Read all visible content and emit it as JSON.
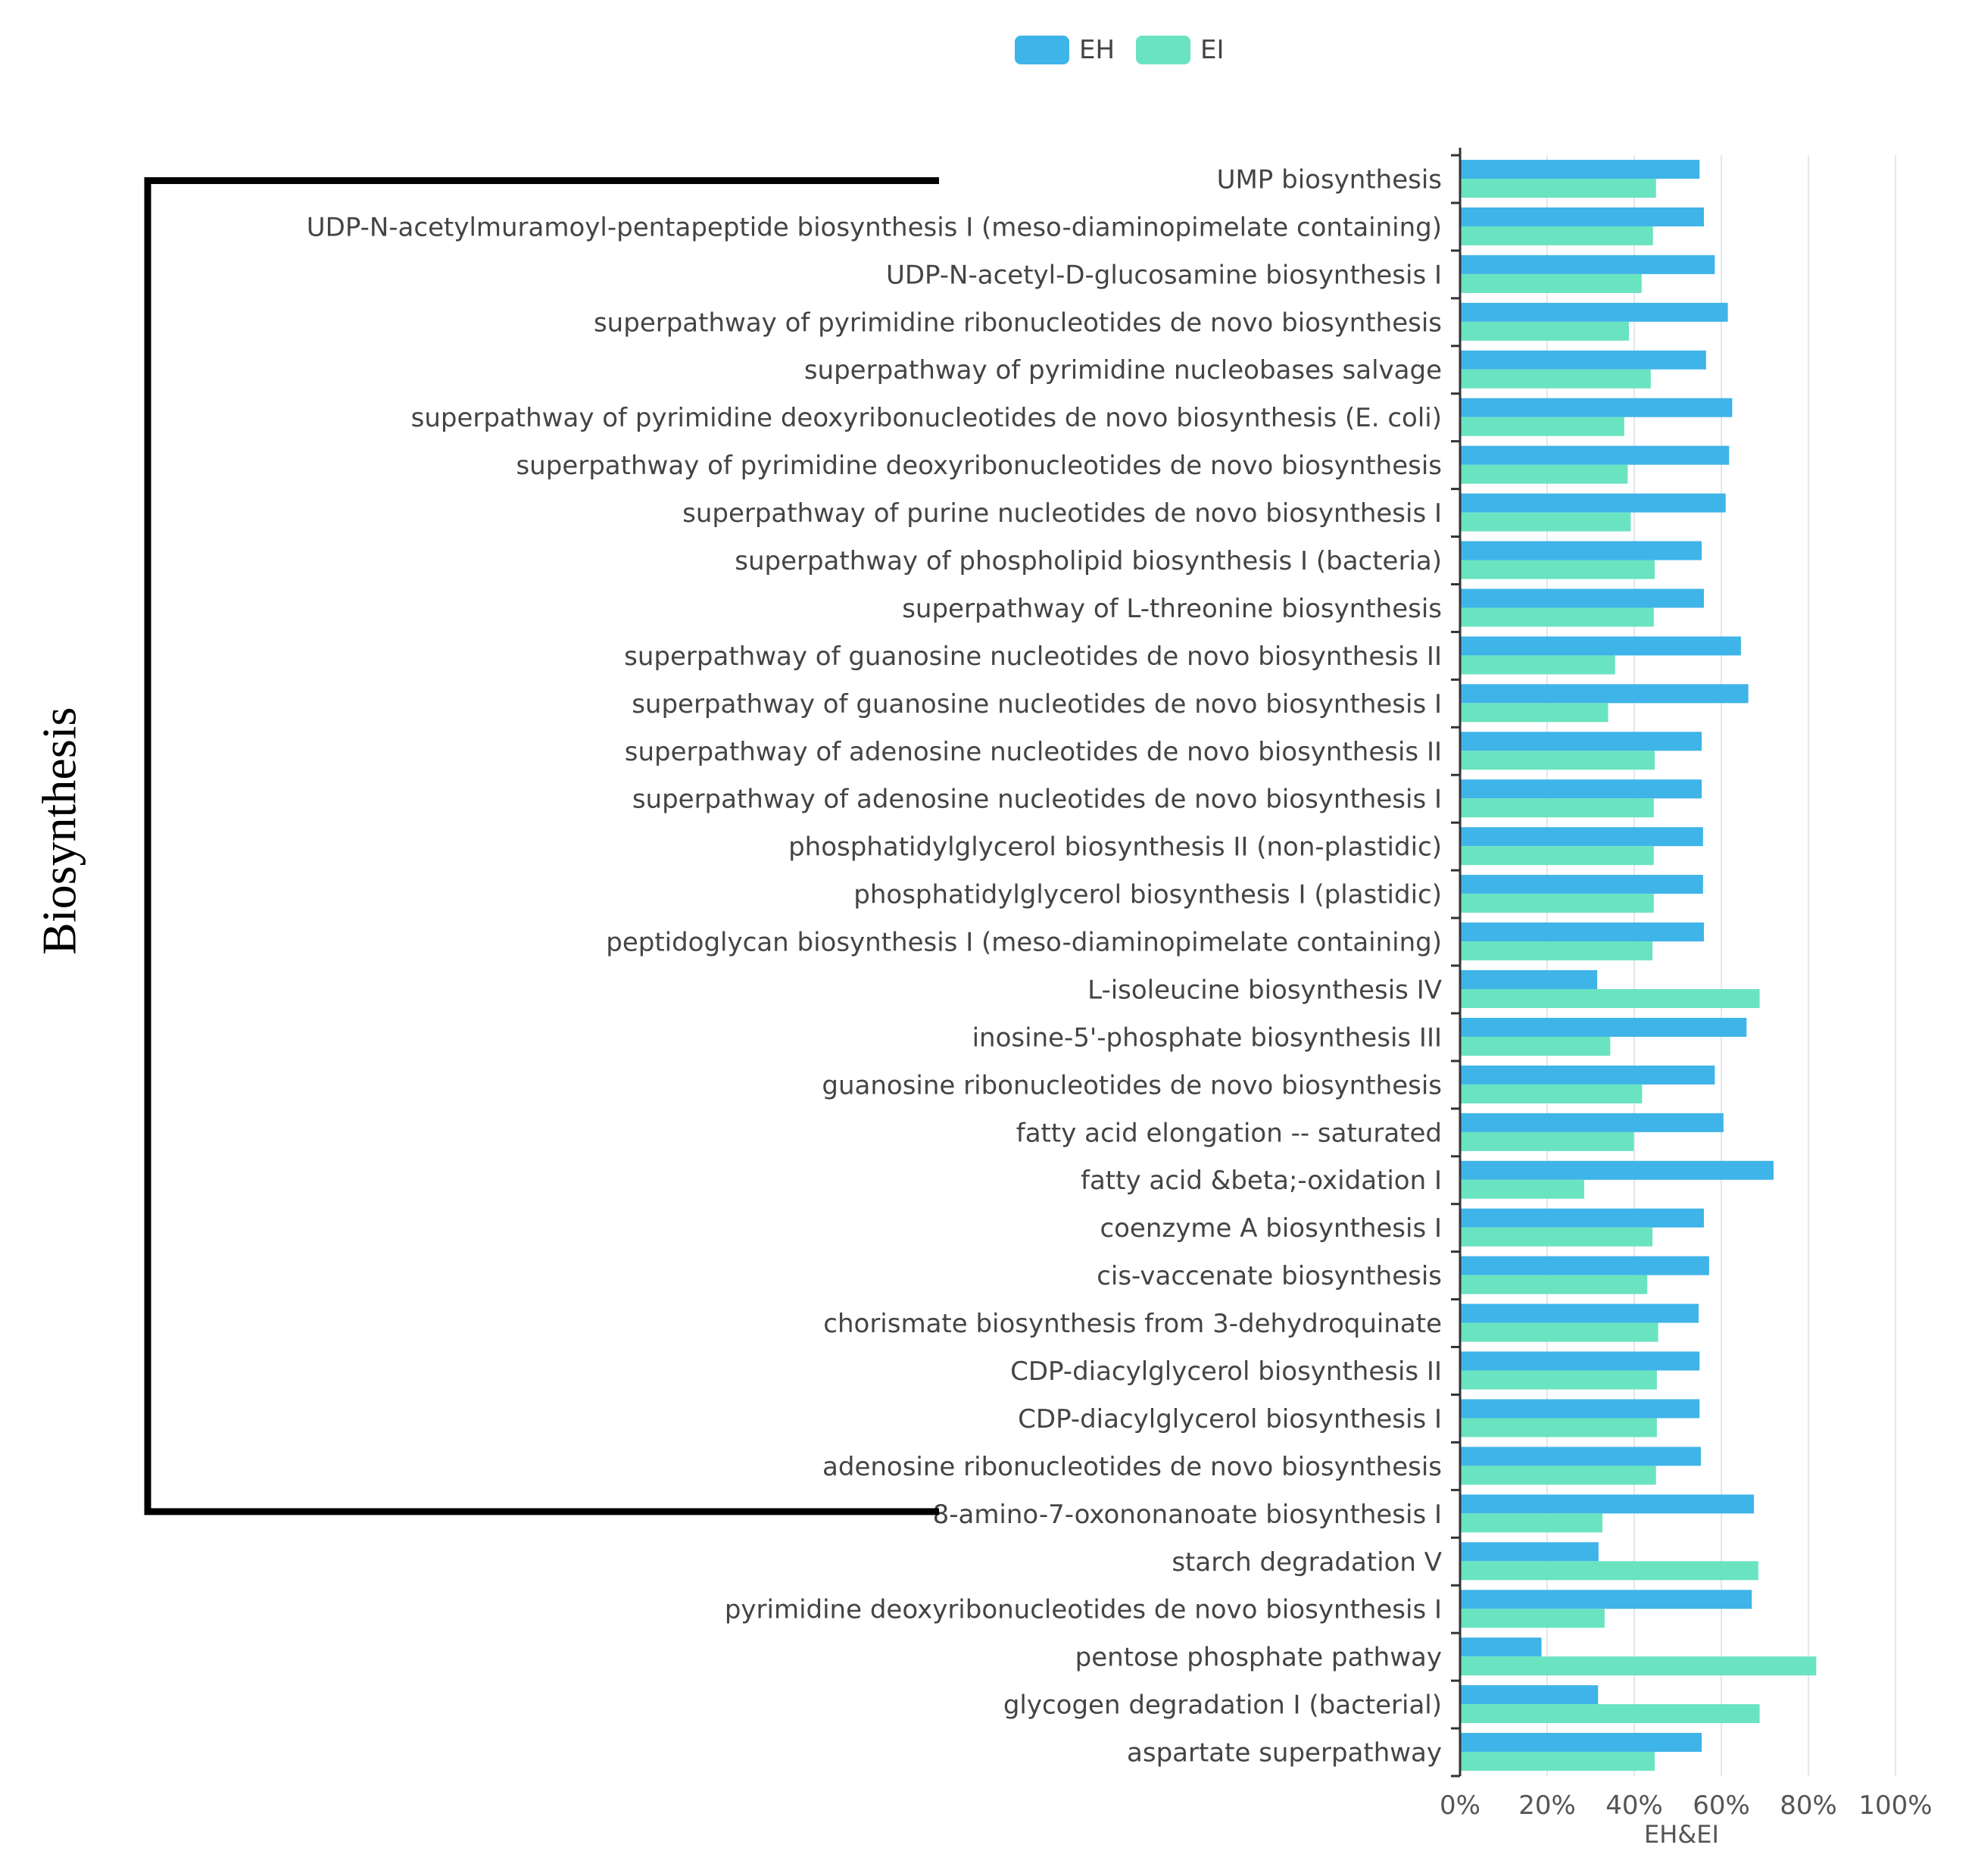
{
  "chart_data": {
    "type": "bar",
    "orientation": "horizontal",
    "categories": [
      "UMP biosynthesis",
      "UDP-N-acetylmuramoyl-pentapeptide biosynthesis I (meso-diaminopimelate containing)",
      "UDP-N-acetyl-D-glucosamine biosynthesis I",
      "superpathway of pyrimidine ribonucleotides de novo biosynthesis",
      "superpathway of pyrimidine nucleobases salvage",
      "superpathway of pyrimidine deoxyribonucleotides de novo biosynthesis (E. coli)",
      "superpathway of pyrimidine deoxyribonucleotides de novo biosynthesis",
      "superpathway of purine nucleotides de novo biosynthesis I",
      "superpathway of phospholipid biosynthesis I (bacteria)",
      "superpathway of L-threonine biosynthesis",
      "superpathway of guanosine nucleotides de novo biosynthesis II",
      "superpathway of guanosine nucleotides de novo biosynthesis I",
      "superpathway of adenosine nucleotides de novo biosynthesis II",
      "superpathway of adenosine nucleotides de novo biosynthesis I",
      "phosphatidylglycerol biosynthesis II (non-plastidic)",
      "phosphatidylglycerol biosynthesis I (plastidic)",
      "peptidoglycan biosynthesis I (meso-diaminopimelate containing)",
      "L-isoleucine biosynthesis IV",
      "inosine-5'-phosphate biosynthesis III",
      "guanosine ribonucleotides de novo biosynthesis",
      "fatty acid elongation -- saturated",
      "fatty acid &beta;-oxidation I",
      "coenzyme A biosynthesis I",
      "cis-vaccenate biosynthesis",
      "chorismate biosynthesis from 3-dehydroquinate",
      "CDP-diacylglycerol biosynthesis II",
      "CDP-diacylglycerol biosynthesis I",
      "adenosine ribonucleotides de novo biosynthesis",
      "8-amino-7-oxononanoate biosynthesis I",
      "starch degradation V",
      "pyrimidine deoxyribonucleotides de novo biosynthesis I",
      "pentose phosphate pathway",
      "glycogen degradation I (bacterial)",
      "aspartate superpathway"
    ],
    "series": [
      {
        "name": "EH",
        "color": "#3eb4e8",
        "values": [
          55,
          56,
          58.5,
          61.5,
          56.5,
          62.5,
          61.8,
          61,
          55.5,
          56,
          64.5,
          66.2,
          55.5,
          55.5,
          55.8,
          55.8,
          56,
          31.5,
          65.8,
          58.5,
          60.5,
          72,
          56,
          57.2,
          54.8,
          55,
          55,
          55.3,
          67.5,
          31.8,
          67,
          18.7,
          31.7,
          55.5
        ]
      },
      {
        "name": "EI",
        "color": "#6ae3c0",
        "values": [
          45,
          44.3,
          41.7,
          38.8,
          43.8,
          37.7,
          38.5,
          39.2,
          44.7,
          44.5,
          35.6,
          34,
          44.7,
          44.5,
          44.5,
          44.5,
          44.2,
          68.8,
          34.5,
          41.8,
          39.9,
          28.5,
          44.2,
          43,
          45.5,
          45.2,
          45.2,
          45,
          32.7,
          68.5,
          33.2,
          81.8,
          68.8,
          44.7
        ]
      }
    ],
    "xlim": [
      0,
      100
    ],
    "x_ticks": [
      "0%",
      "20%",
      "40%",
      "60%",
      "80%",
      "100%"
    ],
    "xlabel": "EH&EI",
    "ylabel": "",
    "legend": [
      "EH",
      "EI"
    ],
    "legend_position": "top-center",
    "grid": true,
    "bracket": {
      "label": "Biosynthesis",
      "from_category": "UMP biosynthesis",
      "to_category": "8-amino-7-oxononanoate biosynthesis I"
    }
  }
}
